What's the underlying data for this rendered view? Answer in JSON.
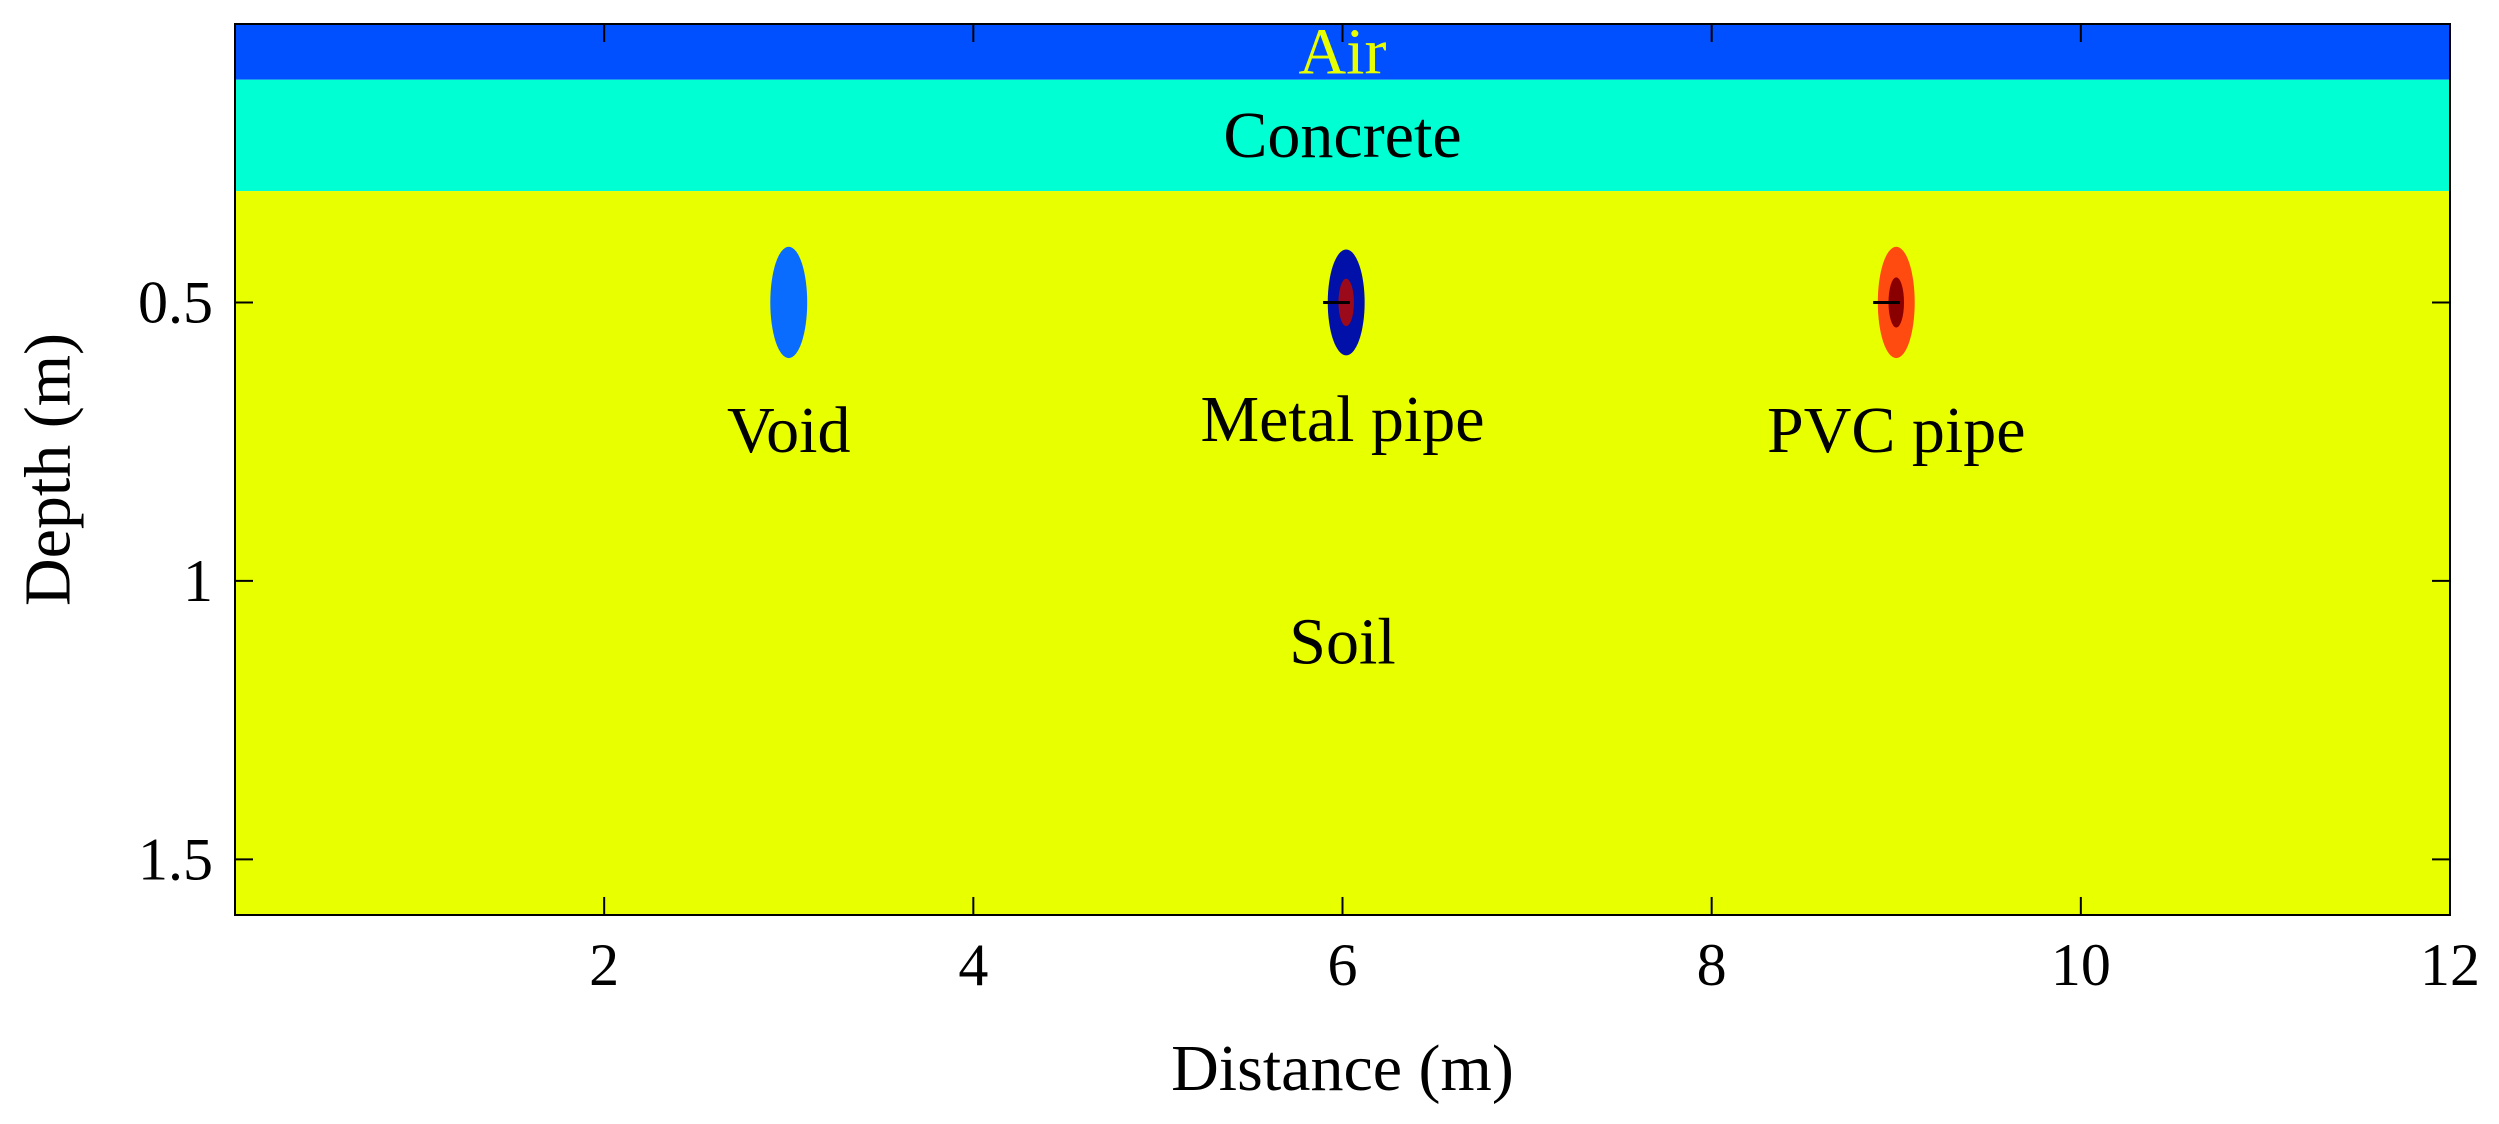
{
  "chart_data": {
    "type": "heatmap",
    "title": "",
    "xlabel": "Distance (m)",
    "ylabel": "Depth (m)",
    "xlim": [
      0,
      12
    ],
    "ylim": [
      0,
      1.6
    ],
    "y_reversed": true,
    "grid": false,
    "x_ticks": [
      2,
      4,
      6,
      8,
      10,
      12
    ],
    "x_tick_labels": [
      "2",
      "4",
      "6",
      "8",
      "10",
      "12"
    ],
    "y_ticks": [
      0.5,
      1,
      1.5
    ],
    "y_tick_labels": [
      "0.5",
      "1",
      "1.5"
    ],
    "layers": [
      {
        "name": "Air",
        "top": 0,
        "bottom": 0.1,
        "color": "#0050ff",
        "label_color": "#e8ff00"
      },
      {
        "name": "Concrete",
        "top": 0.1,
        "bottom": 0.3,
        "color": "#00ffd2"
      },
      {
        "name": "Soil",
        "top": 0.3,
        "bottom": 1.6,
        "color": "#e8ff00"
      }
    ],
    "objects": [
      {
        "name": "Void",
        "x": 3.0,
        "depth": 0.5,
        "half_width": 0.1,
        "half_height": 0.1,
        "color": "#0a6bff",
        "core_color": ""
      },
      {
        "name": "Metal pipe",
        "x": 6.02,
        "depth": 0.5,
        "half_width": 0.1,
        "half_height": 0.095,
        "color": "#0010a8",
        "core_color": "#9a0a1a"
      },
      {
        "name": "PVC pipe",
        "x": 9.0,
        "depth": 0.5,
        "half_width": 0.1,
        "half_height": 0.1,
        "color": "#ff4a10",
        "core_color": "#8a0000"
      }
    ],
    "annotations": [
      {
        "text": "Air",
        "x": 6.0,
        "depth": 0.05
      },
      {
        "text": "Concrete",
        "x": 6.0,
        "depth": 0.2
      },
      {
        "text": "Void",
        "x": 3.0,
        "depth": 0.73
      },
      {
        "text": "Metal pipe",
        "x": 6.0,
        "depth": 0.71
      },
      {
        "text": "PVC pipe",
        "x": 9.0,
        "depth": 0.73
      },
      {
        "text": "Soil",
        "x": 6.0,
        "depth": 1.11
      }
    ]
  }
}
